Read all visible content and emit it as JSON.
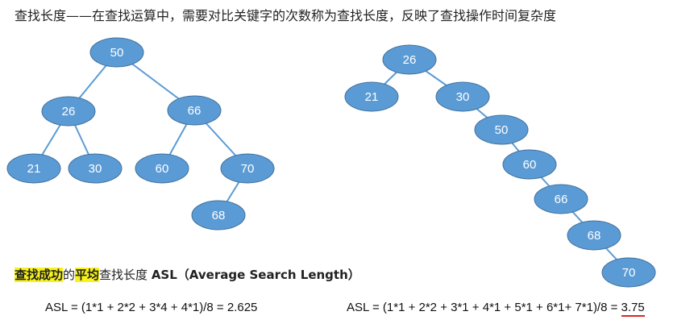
{
  "header": {
    "title": "查找长度——在查找运算中，需要对比关键字的次数称为查找长度，反映了查找操作时间复杂度"
  },
  "tree_left": {
    "nodes": [
      {
        "key": "50",
        "depth": 1
      },
      {
        "key": "26",
        "depth": 2
      },
      {
        "key": "66",
        "depth": 2
      },
      {
        "key": "21",
        "depth": 3
      },
      {
        "key": "30",
        "depth": 3
      },
      {
        "key": "60",
        "depth": 3
      },
      {
        "key": "70",
        "depth": 3
      },
      {
        "key": "68",
        "depth": 4
      }
    ],
    "edges": [
      [
        "50",
        "26"
      ],
      [
        "50",
        "66"
      ],
      [
        "26",
        "21"
      ],
      [
        "26",
        "30"
      ],
      [
        "66",
        "60"
      ],
      [
        "66",
        "70"
      ],
      [
        "70",
        "68"
      ]
    ]
  },
  "tree_right": {
    "nodes": [
      {
        "key": "26",
        "depth": 1
      },
      {
        "key": "21",
        "depth": 2
      },
      {
        "key": "30",
        "depth": 2
      },
      {
        "key": "50",
        "depth": 3
      },
      {
        "key": "60",
        "depth": 4
      },
      {
        "key": "66",
        "depth": 5
      },
      {
        "key": "68",
        "depth": 6
      },
      {
        "key": "70",
        "depth": 7
      }
    ],
    "edges": [
      [
        "26",
        "21"
      ],
      [
        "26",
        "30"
      ],
      [
        "30",
        "50"
      ],
      [
        "50",
        "60"
      ],
      [
        "60",
        "66"
      ],
      [
        "66",
        "68"
      ],
      [
        "68",
        "70"
      ]
    ]
  },
  "asl_heading": {
    "highlight1": "查找成功",
    "connector": "的",
    "highlight2": "平均",
    "rest": "查找长度 ",
    "acronym": "ASL（Average Search Length）"
  },
  "formulas": {
    "left": "ASL = (1*1 + 2*2 + 3*4 + 4*1)/8 = 2.625",
    "right_prefix": "ASL = (1*1 + 2*2 + 3*1 + 4*1 + 5*1 + 6*1+  7*1)/8 = ",
    "right_result": "3.75"
  },
  "colors": {
    "node_fill": "#5b9bd5",
    "node_stroke": "#41719c",
    "edge": "#5b9bd5",
    "highlight": "#f7f21c",
    "underline": "#d9252a"
  }
}
